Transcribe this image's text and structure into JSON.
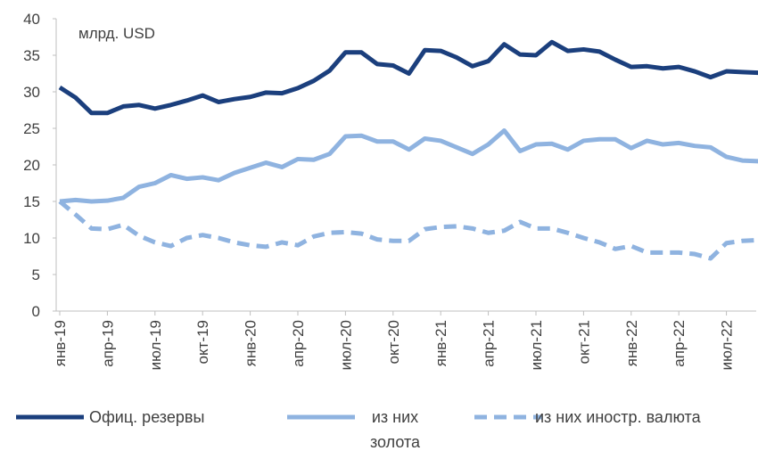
{
  "chart_data": {
    "type": "line",
    "annotation": "млрд. USD",
    "categories": [
      "янв-19",
      null,
      null,
      "апр-19",
      null,
      null,
      "июл-19",
      null,
      null,
      "окт-19",
      null,
      null,
      "янв-20",
      null,
      null,
      "апр-20",
      null,
      null,
      "июл-20",
      null,
      null,
      "окт-20",
      null,
      null,
      "янв-21",
      null,
      null,
      "апр-21",
      null,
      null,
      "июл-21",
      null,
      null,
      "окт-21",
      null,
      null,
      "янв-22",
      null,
      null,
      "апр-22",
      null,
      null,
      "июл-22",
      null,
      null
    ],
    "series": [
      {
        "name": "Офиц. резервы",
        "color": "#1b3f7d",
        "dash": false,
        "values": [
          30.6,
          29.2,
          27.1,
          27.1,
          28.0,
          28.2,
          27.7,
          28.2,
          28.8,
          29.5,
          28.6,
          29.0,
          29.3,
          29.9,
          29.8,
          30.5,
          31.5,
          32.9,
          35.4,
          35.4,
          33.8,
          33.6,
          32.5,
          35.7,
          35.6,
          34.7,
          33.5,
          34.2,
          36.5,
          35.1,
          35.0,
          36.8,
          35.6,
          35.8,
          35.5,
          34.4,
          33.4,
          33.5,
          33.2,
          33.4,
          32.8,
          32.0,
          32.8,
          32.7,
          32.6
        ]
      },
      {
        "name": "из них золота",
        "color": "#8fb3e0",
        "dash": false,
        "values": [
          15.0,
          15.2,
          15.0,
          15.1,
          15.5,
          17.0,
          17.5,
          18.6,
          18.1,
          18.3,
          17.9,
          18.9,
          19.6,
          20.3,
          19.7,
          20.8,
          20.7,
          21.5,
          23.9,
          24.0,
          23.2,
          23.2,
          22.1,
          23.6,
          23.3,
          22.4,
          21.5,
          22.8,
          24.7,
          21.9,
          22.8,
          22.9,
          22.1,
          23.3,
          23.5,
          23.5,
          22.3,
          23.3,
          22.8,
          23.0,
          22.6,
          22.4,
          21.1,
          20.6,
          20.5
        ]
      },
      {
        "name": "из них иностр. валюта",
        "color": "#8fb3e0",
        "dash": true,
        "values": [
          15.0,
          13.2,
          11.3,
          11.2,
          11.8,
          10.3,
          9.4,
          8.9,
          10.0,
          10.4,
          10.0,
          9.4,
          9.0,
          8.8,
          9.4,
          9.0,
          10.2,
          10.7,
          10.8,
          10.6,
          9.8,
          9.6,
          9.6,
          11.2,
          11.5,
          11.6,
          11.3,
          10.7,
          11.0,
          12.2,
          11.3,
          11.3,
          10.7,
          10.0,
          9.4,
          8.5,
          8.9,
          8.0,
          8.0,
          8.0,
          7.8,
          7.2,
          9.3,
          9.6,
          9.7
        ]
      }
    ],
    "ylim": [
      0,
      40
    ],
    "yticks": [
      0,
      5,
      10,
      15,
      20,
      25,
      30,
      35,
      40
    ],
    "grid": false
  }
}
